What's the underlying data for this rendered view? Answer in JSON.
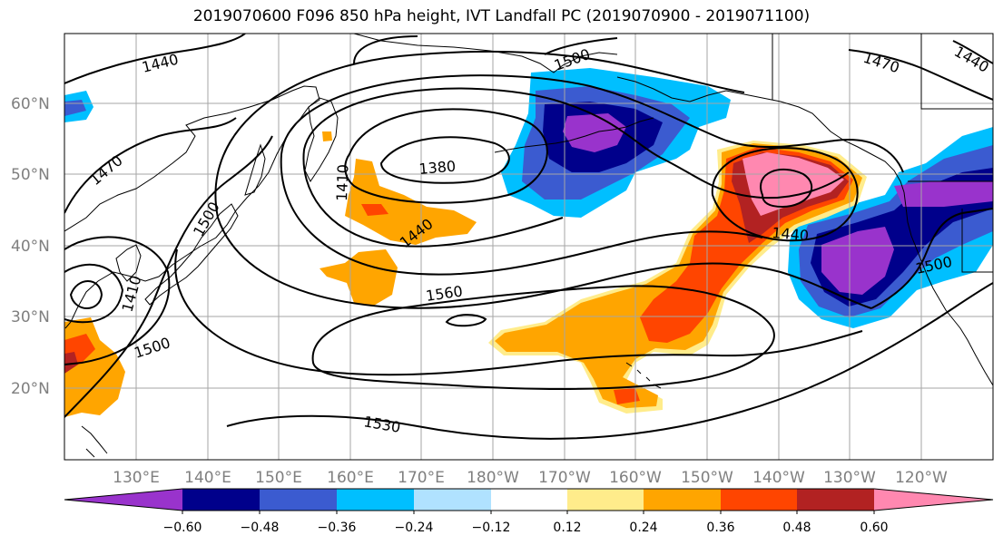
{
  "title": "2019070600 F096 850 hPa height, IVT Landfall PC (2019070900 - 2019071100)",
  "lat_labels": [
    "60°N",
    "50°N",
    "40°N",
    "30°N",
    "20°N"
  ],
  "lon_labels": [
    "130°E",
    "140°E",
    "150°E",
    "160°E",
    "170°E",
    "180°W",
    "170°W",
    "160°W",
    "150°W",
    "140°W",
    "130°W",
    "120°W"
  ],
  "contour_labels": [
    "1440",
    "1500",
    "1470",
    "1440",
    "1470",
    "1410",
    "1380",
    "1500",
    "1440",
    "1440",
    "1560",
    "1500",
    "1530",
    "1410",
    "1500"
  ],
  "colorbar": {
    "tick_labels": [
      "−0.60",
      "−0.48",
      "−0.36",
      "−0.24",
      "−0.12",
      "0.12",
      "0.24",
      "0.36",
      "0.48",
      "0.60"
    ],
    "colors": [
      "#9933cc",
      "#00008b",
      "#3b5bd0",
      "#00bfff",
      "#b0e2ff",
      "#ffffff",
      "#ffec8b",
      "#ffa500",
      "#ff4500",
      "#b22222",
      "#ff88b0"
    ]
  }
}
